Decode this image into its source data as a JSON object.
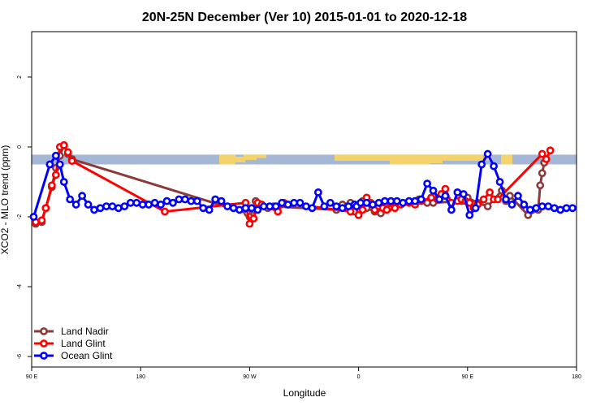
{
  "chart_data": {
    "type": "line",
    "title": "20N-25N December (Ver 10)   2015-01-01 to 2020-12-18",
    "xlabel": "Longitude",
    "ylabel": "XCO2 - MLO trend (ppm)",
    "xlim": [
      -90,
      180
    ],
    "ylim": [
      -6.3,
      3.3
    ],
    "x_ticks": [
      {
        "value": -90,
        "label": "90 E"
      },
      {
        "value": -36,
        "label": "180"
      },
      {
        "value": 18,
        "label": "90 W"
      },
      {
        "value": 72,
        "label": "0"
      },
      {
        "value": 126,
        "label": "90 E"
      },
      {
        "value": 180,
        "label": "180"
      }
    ],
    "y_ticks": [
      -6,
      -4,
      -2,
      0,
      2
    ],
    "legend_position": "bottom-left",
    "band": {
      "y_min": -0.5,
      "y_max": -0.22,
      "ocean_color": "#a4b8d6",
      "land_color": "#f4d26c"
    },
    "series": [
      {
        "name": "Land Nadir",
        "color": "#8b3a3a",
        "x": [
          -88,
          -85,
          -83,
          -80,
          -78,
          -76,
          -74,
          -72,
          -70,
          17,
          18,
          19,
          20,
          21,
          27,
          30,
          61,
          64,
          68,
          70,
          74,
          76,
          80,
          83,
          87,
          100,
          102,
          106,
          109,
          123,
          126,
          131,
          136,
          143,
          145,
          147,
          156,
          161,
          162,
          163,
          164
        ],
        "y": [
          -2.2,
          -2.15,
          -1.75,
          -1.15,
          -0.6,
          -0.25,
          0.05,
          -0.2,
          -0.35,
          -1.9,
          -2.0,
          -1.75,
          -1.8,
          -1.55,
          -1.75,
          -1.7,
          -1.8,
          -1.65,
          -1.6,
          -1.85,
          -1.55,
          -1.75,
          -1.85,
          -1.9,
          -1.75,
          -1.6,
          -1.5,
          -1.6,
          -1.6,
          -1.55,
          -1.45,
          -1.6,
          -1.7,
          -1.25,
          -1.55,
          -1.4,
          -1.95,
          -1.8,
          -1.1,
          -0.75,
          -0.45
        ]
      },
      {
        "name": "Land Glint",
        "color": "#ff0000",
        "x": [
          -88,
          -85,
          -83,
          -80,
          -78,
          -76,
          -74,
          -72,
          -70,
          -24,
          16,
          18,
          20,
          22,
          24,
          32,
          35,
          68,
          70,
          72,
          74,
          76,
          78,
          80,
          82,
          84,
          86,
          88,
          90,
          93,
          97,
          100,
          103,
          108,
          111,
          113,
          115,
          118,
          121,
          123,
          125,
          127,
          129,
          131,
          134,
          137,
          139,
          141,
          163,
          165,
          167
        ],
        "y": [
          -2.15,
          -2.1,
          -1.75,
          -1.1,
          -0.8,
          0.0,
          0.05,
          -0.15,
          -0.4,
          -1.85,
          -1.6,
          -2.2,
          -2.05,
          -1.6,
          -1.65,
          -1.85,
          -1.6,
          -1.85,
          -1.65,
          -1.95,
          -1.8,
          -1.45,
          -1.6,
          -1.8,
          -1.7,
          -1.75,
          -1.8,
          -1.6,
          -1.75,
          -1.65,
          -1.6,
          -1.65,
          -1.55,
          -1.45,
          -1.5,
          -1.35,
          -1.2,
          -1.6,
          -1.55,
          -1.5,
          -1.55,
          -1.6,
          -1.75,
          -1.65,
          -1.5,
          -1.3,
          -1.5,
          -1.5,
          -0.2,
          -0.35,
          -0.1
        ]
      },
      {
        "name": "Ocean Glint",
        "color": "#0000ff",
        "x": [
          -89,
          -81,
          -78,
          -76,
          -74,
          -71,
          -68,
          -65,
          -62,
          -59,
          -56,
          -53,
          -50,
          -47,
          -44,
          -41,
          -38,
          -35,
          -32,
          -29,
          -26,
          -23,
          -20,
          -17,
          -14,
          -11,
          -8,
          -5,
          -2,
          1,
          4,
          7,
          10,
          13,
          16,
          19,
          22,
          25,
          28,
          31,
          34,
          37,
          40,
          43,
          46,
          49,
          52,
          55,
          58,
          61,
          64,
          67,
          70,
          71,
          73,
          76,
          79,
          82,
          85,
          88,
          91,
          94,
          97,
          100,
          103,
          106,
          109,
          112,
          115,
          118,
          121,
          124,
          127,
          130,
          133,
          136,
          139,
          142,
          145,
          148,
          151,
          154,
          157,
          160,
          163,
          166,
          169,
          172,
          175,
          178
        ],
        "y": [
          -2.0,
          -0.5,
          -0.25,
          -0.5,
          -1.0,
          -1.5,
          -1.65,
          -1.4,
          -1.65,
          -1.8,
          -1.75,
          -1.7,
          -1.7,
          -1.75,
          -1.7,
          -1.6,
          -1.6,
          -1.65,
          -1.65,
          -1.6,
          -1.65,
          -1.55,
          -1.6,
          -1.5,
          -1.5,
          -1.55,
          -1.55,
          -1.75,
          -1.8,
          -1.5,
          -1.55,
          -1.7,
          -1.75,
          -1.8,
          -1.75,
          -1.75,
          -1.8,
          -1.7,
          -1.7,
          -1.7,
          -1.6,
          -1.65,
          -1.6,
          -1.6,
          -1.7,
          -1.75,
          -1.3,
          -1.7,
          -1.6,
          -1.7,
          -1.75,
          -1.7,
          -1.65,
          -1.7,
          -1.6,
          -1.6,
          -1.65,
          -1.6,
          -1.55,
          -1.55,
          -1.55,
          -1.6,
          -1.55,
          -1.55,
          -1.5,
          -1.05,
          -1.25,
          -1.5,
          -1.4,
          -1.8,
          -1.3,
          -1.35,
          -1.95,
          -1.75,
          -0.5,
          -0.2,
          -0.55,
          -1.0,
          -1.5,
          -1.65,
          -1.4,
          -1.65,
          -1.8,
          -1.75,
          -1.7,
          -1.7,
          -1.75,
          -1.8,
          -1.75,
          -1.75
        ]
      }
    ]
  }
}
